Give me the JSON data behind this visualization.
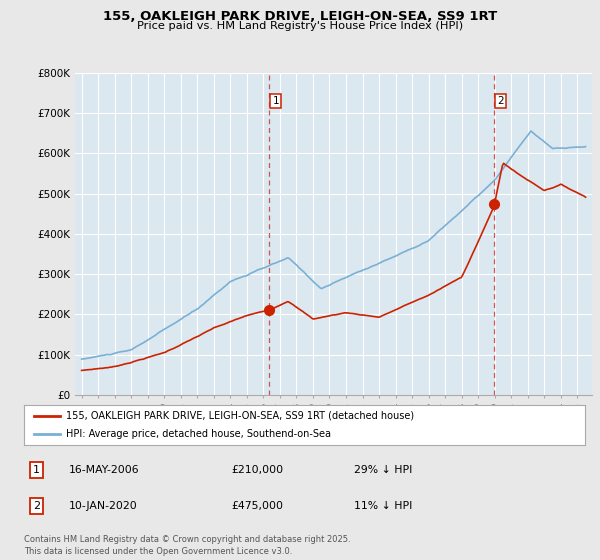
{
  "title": "155, OAKLEIGH PARK DRIVE, LEIGH-ON-SEA, SS9 1RT",
  "subtitle": "Price paid vs. HM Land Registry's House Price Index (HPI)",
  "ylim": [
    0,
    800000
  ],
  "yticks": [
    0,
    100000,
    200000,
    300000,
    400000,
    500000,
    600000,
    700000,
    800000
  ],
  "ytick_labels": [
    "£0",
    "£100K",
    "£200K",
    "£300K",
    "£400K",
    "£500K",
    "£600K",
    "£700K",
    "£800K"
  ],
  "sale1_date": 2006.37,
  "sale1_price": 210000,
  "sale2_date": 2019.98,
  "sale2_price": 475000,
  "red_color": "#cc2200",
  "blue_color": "#7ab0d4",
  "vline_color": "#cc4444",
  "plot_bg": "#dce8f0",
  "legend_line1": "155, OAKLEIGH PARK DRIVE, LEIGH-ON-SEA, SS9 1RT (detached house)",
  "legend_line2": "HPI: Average price, detached house, Southend-on-Sea",
  "annotation1_date": "16-MAY-2006",
  "annotation1_price": "£210,000",
  "annotation1_hpi": "29% ↓ HPI",
  "annotation2_date": "10-JAN-2020",
  "annotation2_price": "£475,000",
  "annotation2_hpi": "11% ↓ HPI",
  "footer": "Contains HM Land Registry data © Crown copyright and database right 2025.\nThis data is licensed under the Open Government Licence v3.0.",
  "background_color": "#e8e8e8",
  "fig_width": 6.0,
  "fig_height": 5.6,
  "dpi": 100
}
